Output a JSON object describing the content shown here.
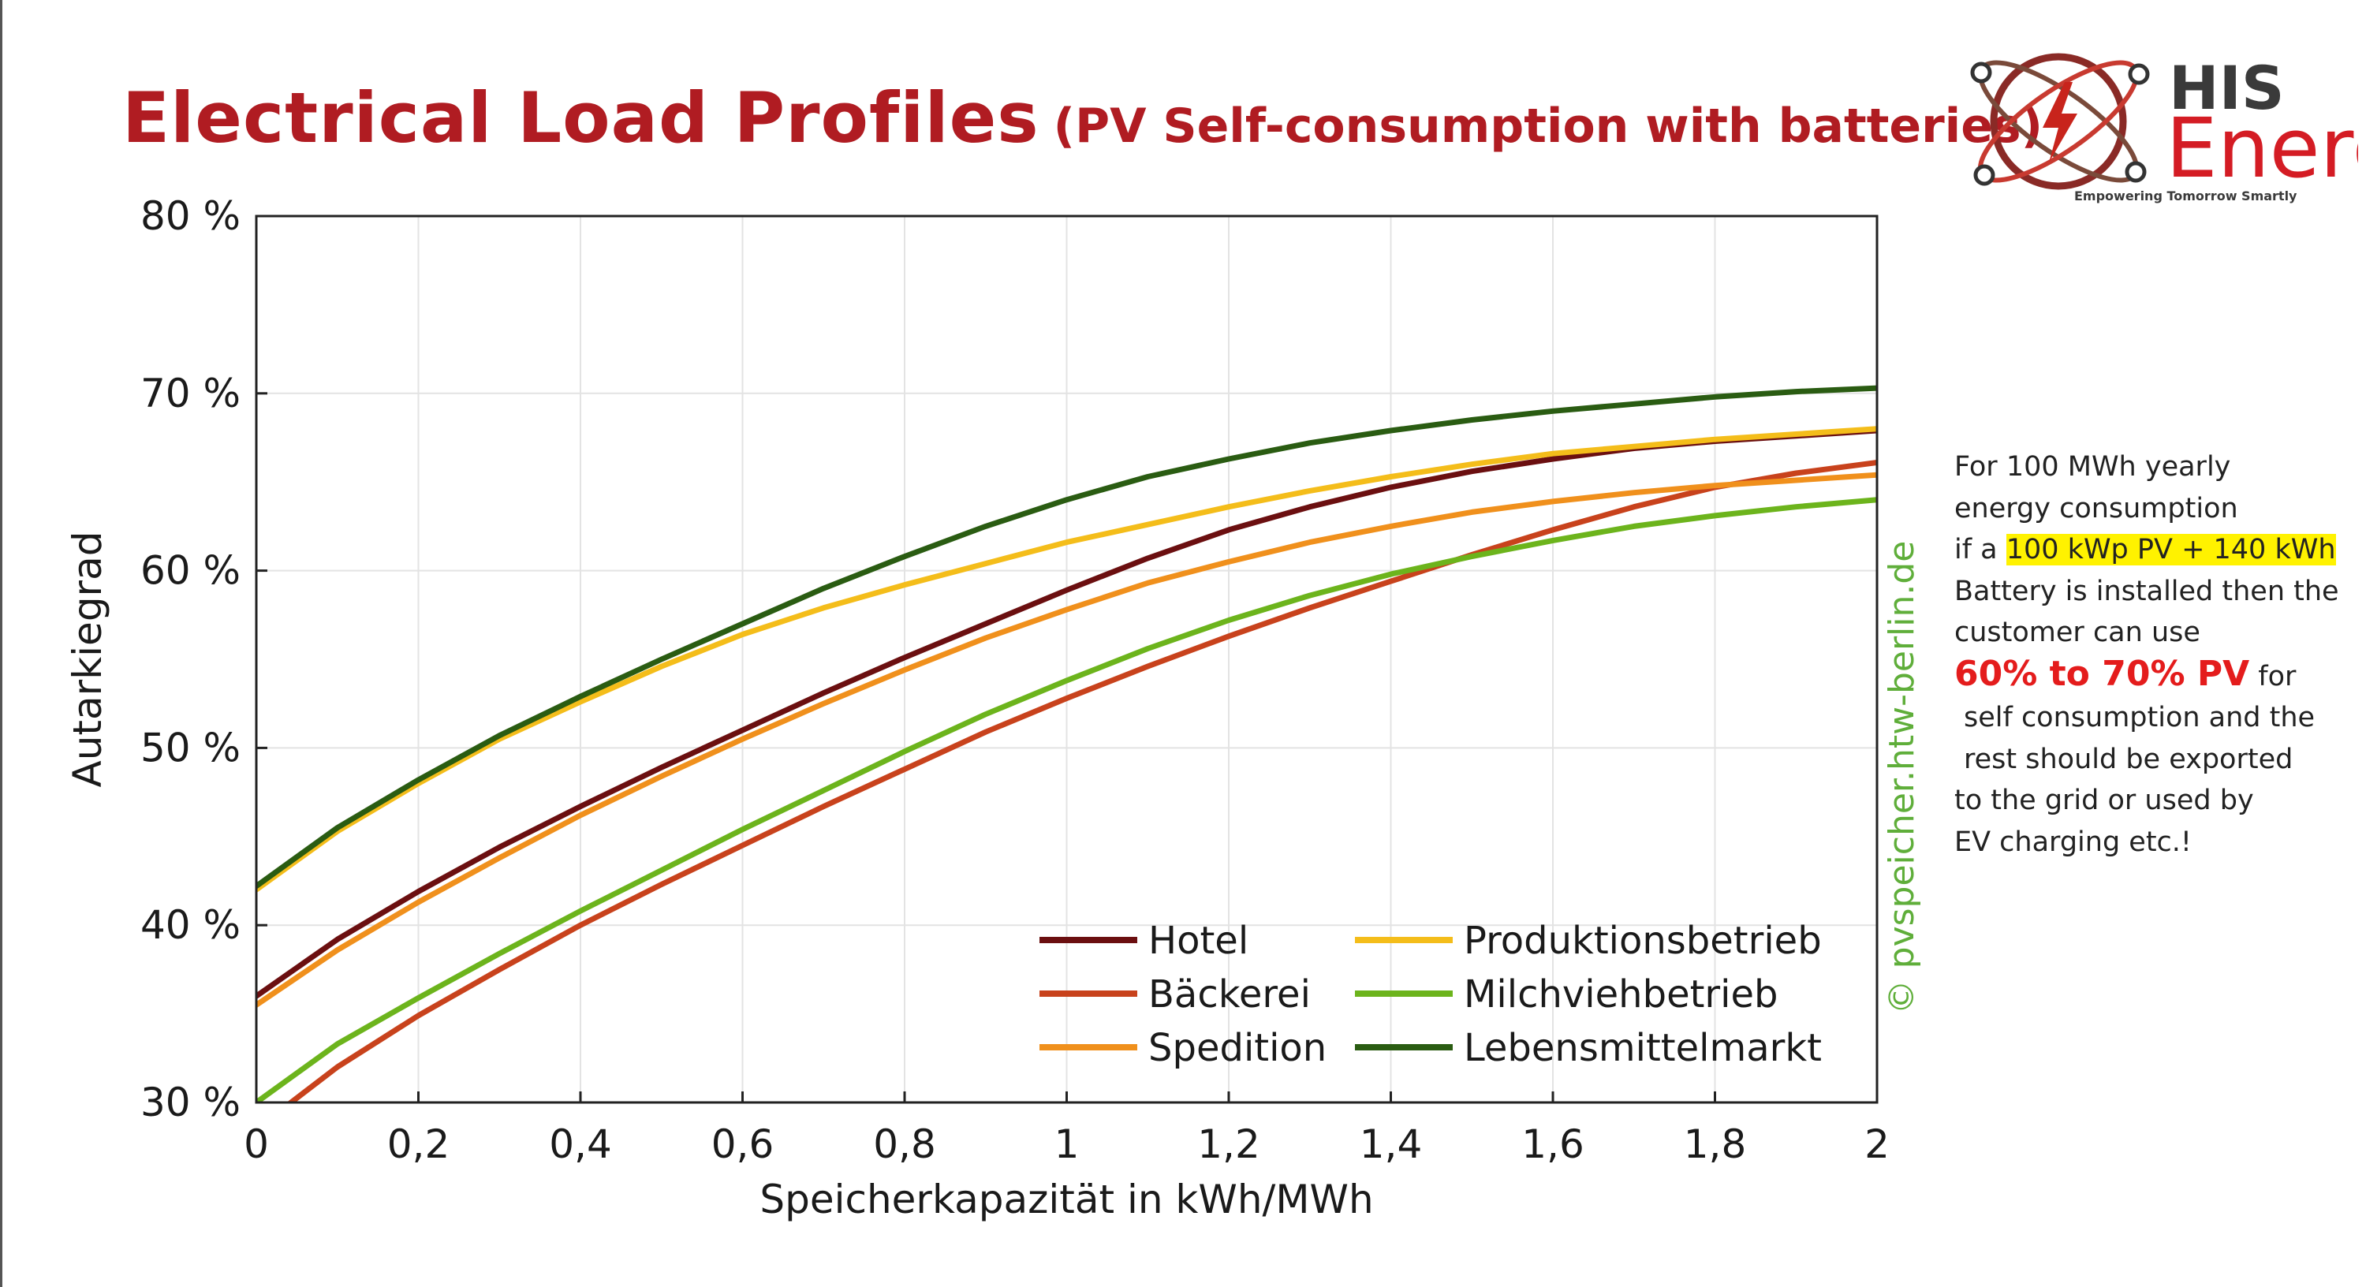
{
  "header": {
    "title": "Electrical Load Profiles",
    "subtitle": "(PV Self-consumption with batteries)"
  },
  "logo": {
    "brand_top": "HIS",
    "brand_bottom": "Energy",
    "tagline": "Empowering Tomorrow Smartly",
    "icon": "atom-lightning-icon"
  },
  "watermark": "© pvspeicher.htw-berlin.de",
  "note": {
    "line1": "For 100 MWh yearly",
    "line2": "energy consumption",
    "line3_prefix": "if a ",
    "line3_highlight": "100 kWp PV + 140 kWh",
    "line4": "Battery is installed then the",
    "line5": "customer can use",
    "line6_emphasis": "60% to 70% PV",
    "line6_suffix": " for",
    "line7": "self consumption and the",
    "line8": "rest should be exported",
    "line9": "to the grid or used by",
    "line10": "EV charging etc.!"
  },
  "chart_data": {
    "type": "line",
    "xlabel": "Speicherkapazität in kWh/MWh",
    "ylabel": "Autarkiegrad",
    "xlim": [
      0,
      2
    ],
    "ylim": [
      30,
      80
    ],
    "x_ticks": [
      0,
      0.2,
      0.4,
      0.6,
      0.8,
      1,
      1.2,
      1.4,
      1.6,
      1.8,
      2
    ],
    "x_tick_labels": [
      "0",
      "0,2",
      "0,4",
      "0,6",
      "0,8",
      "1",
      "1,2",
      "1,4",
      "1,6",
      "1,8",
      "2"
    ],
    "y_ticks": [
      30,
      40,
      50,
      60,
      70,
      80
    ],
    "y_tick_labels": [
      "30 %",
      "40 %",
      "50 %",
      "60 %",
      "70 %",
      "80 %"
    ],
    "grid": true,
    "legend_position": "bottom-right",
    "x": [
      0,
      0.1,
      0.2,
      0.3,
      0.4,
      0.5,
      0.6,
      0.7,
      0.8,
      0.9,
      1.0,
      1.1,
      1.2,
      1.3,
      1.4,
      1.5,
      1.6,
      1.7,
      1.8,
      1.9,
      2.0
    ],
    "series": [
      {
        "name": "Hotel",
        "color": "#6b0f10",
        "values": [
          36.0,
          39.2,
          41.9,
          44.4,
          46.7,
          48.9,
          51.0,
          53.1,
          55.1,
          57.0,
          58.9,
          60.7,
          62.3,
          63.6,
          64.7,
          65.6,
          66.3,
          66.9,
          67.3,
          67.6,
          67.9
        ]
      },
      {
        "name": "Bäckerei",
        "color": "#c8421c",
        "values": [
          28.5,
          32.0,
          34.9,
          37.5,
          40.0,
          42.3,
          44.5,
          46.7,
          48.8,
          50.9,
          52.8,
          54.6,
          56.3,
          57.9,
          59.4,
          60.9,
          62.3,
          63.6,
          64.7,
          65.5,
          66.1
        ]
      },
      {
        "name": "Spedition",
        "color": "#f0901c",
        "values": [
          35.5,
          38.6,
          41.3,
          43.8,
          46.2,
          48.4,
          50.5,
          52.5,
          54.4,
          56.2,
          57.8,
          59.3,
          60.5,
          61.6,
          62.5,
          63.3,
          63.9,
          64.4,
          64.8,
          65.1,
          65.4
        ]
      },
      {
        "name": "Produktionsbetrieb",
        "color": "#f4bd1a",
        "values": [
          42.0,
          45.3,
          48.0,
          50.5,
          52.6,
          54.6,
          56.4,
          57.9,
          59.2,
          60.4,
          61.6,
          62.6,
          63.6,
          64.5,
          65.3,
          66.0,
          66.6,
          67.0,
          67.4,
          67.7,
          68.0
        ]
      },
      {
        "name": "Milchviehbetrieb",
        "color": "#6cb41c",
        "values": [
          30.0,
          33.3,
          35.9,
          38.4,
          40.8,
          43.1,
          45.4,
          47.6,
          49.8,
          51.9,
          53.8,
          55.6,
          57.2,
          58.6,
          59.8,
          60.8,
          61.7,
          62.5,
          63.1,
          63.6,
          64.0
        ]
      },
      {
        "name": "Lebensmittelmarkt",
        "color": "#2a5c12",
        "values": [
          42.2,
          45.5,
          48.2,
          50.7,
          52.9,
          55.0,
          57.0,
          59.0,
          60.8,
          62.5,
          64.0,
          65.3,
          66.3,
          67.2,
          67.9,
          68.5,
          69.0,
          69.4,
          69.8,
          70.1,
          70.3
        ]
      }
    ]
  }
}
